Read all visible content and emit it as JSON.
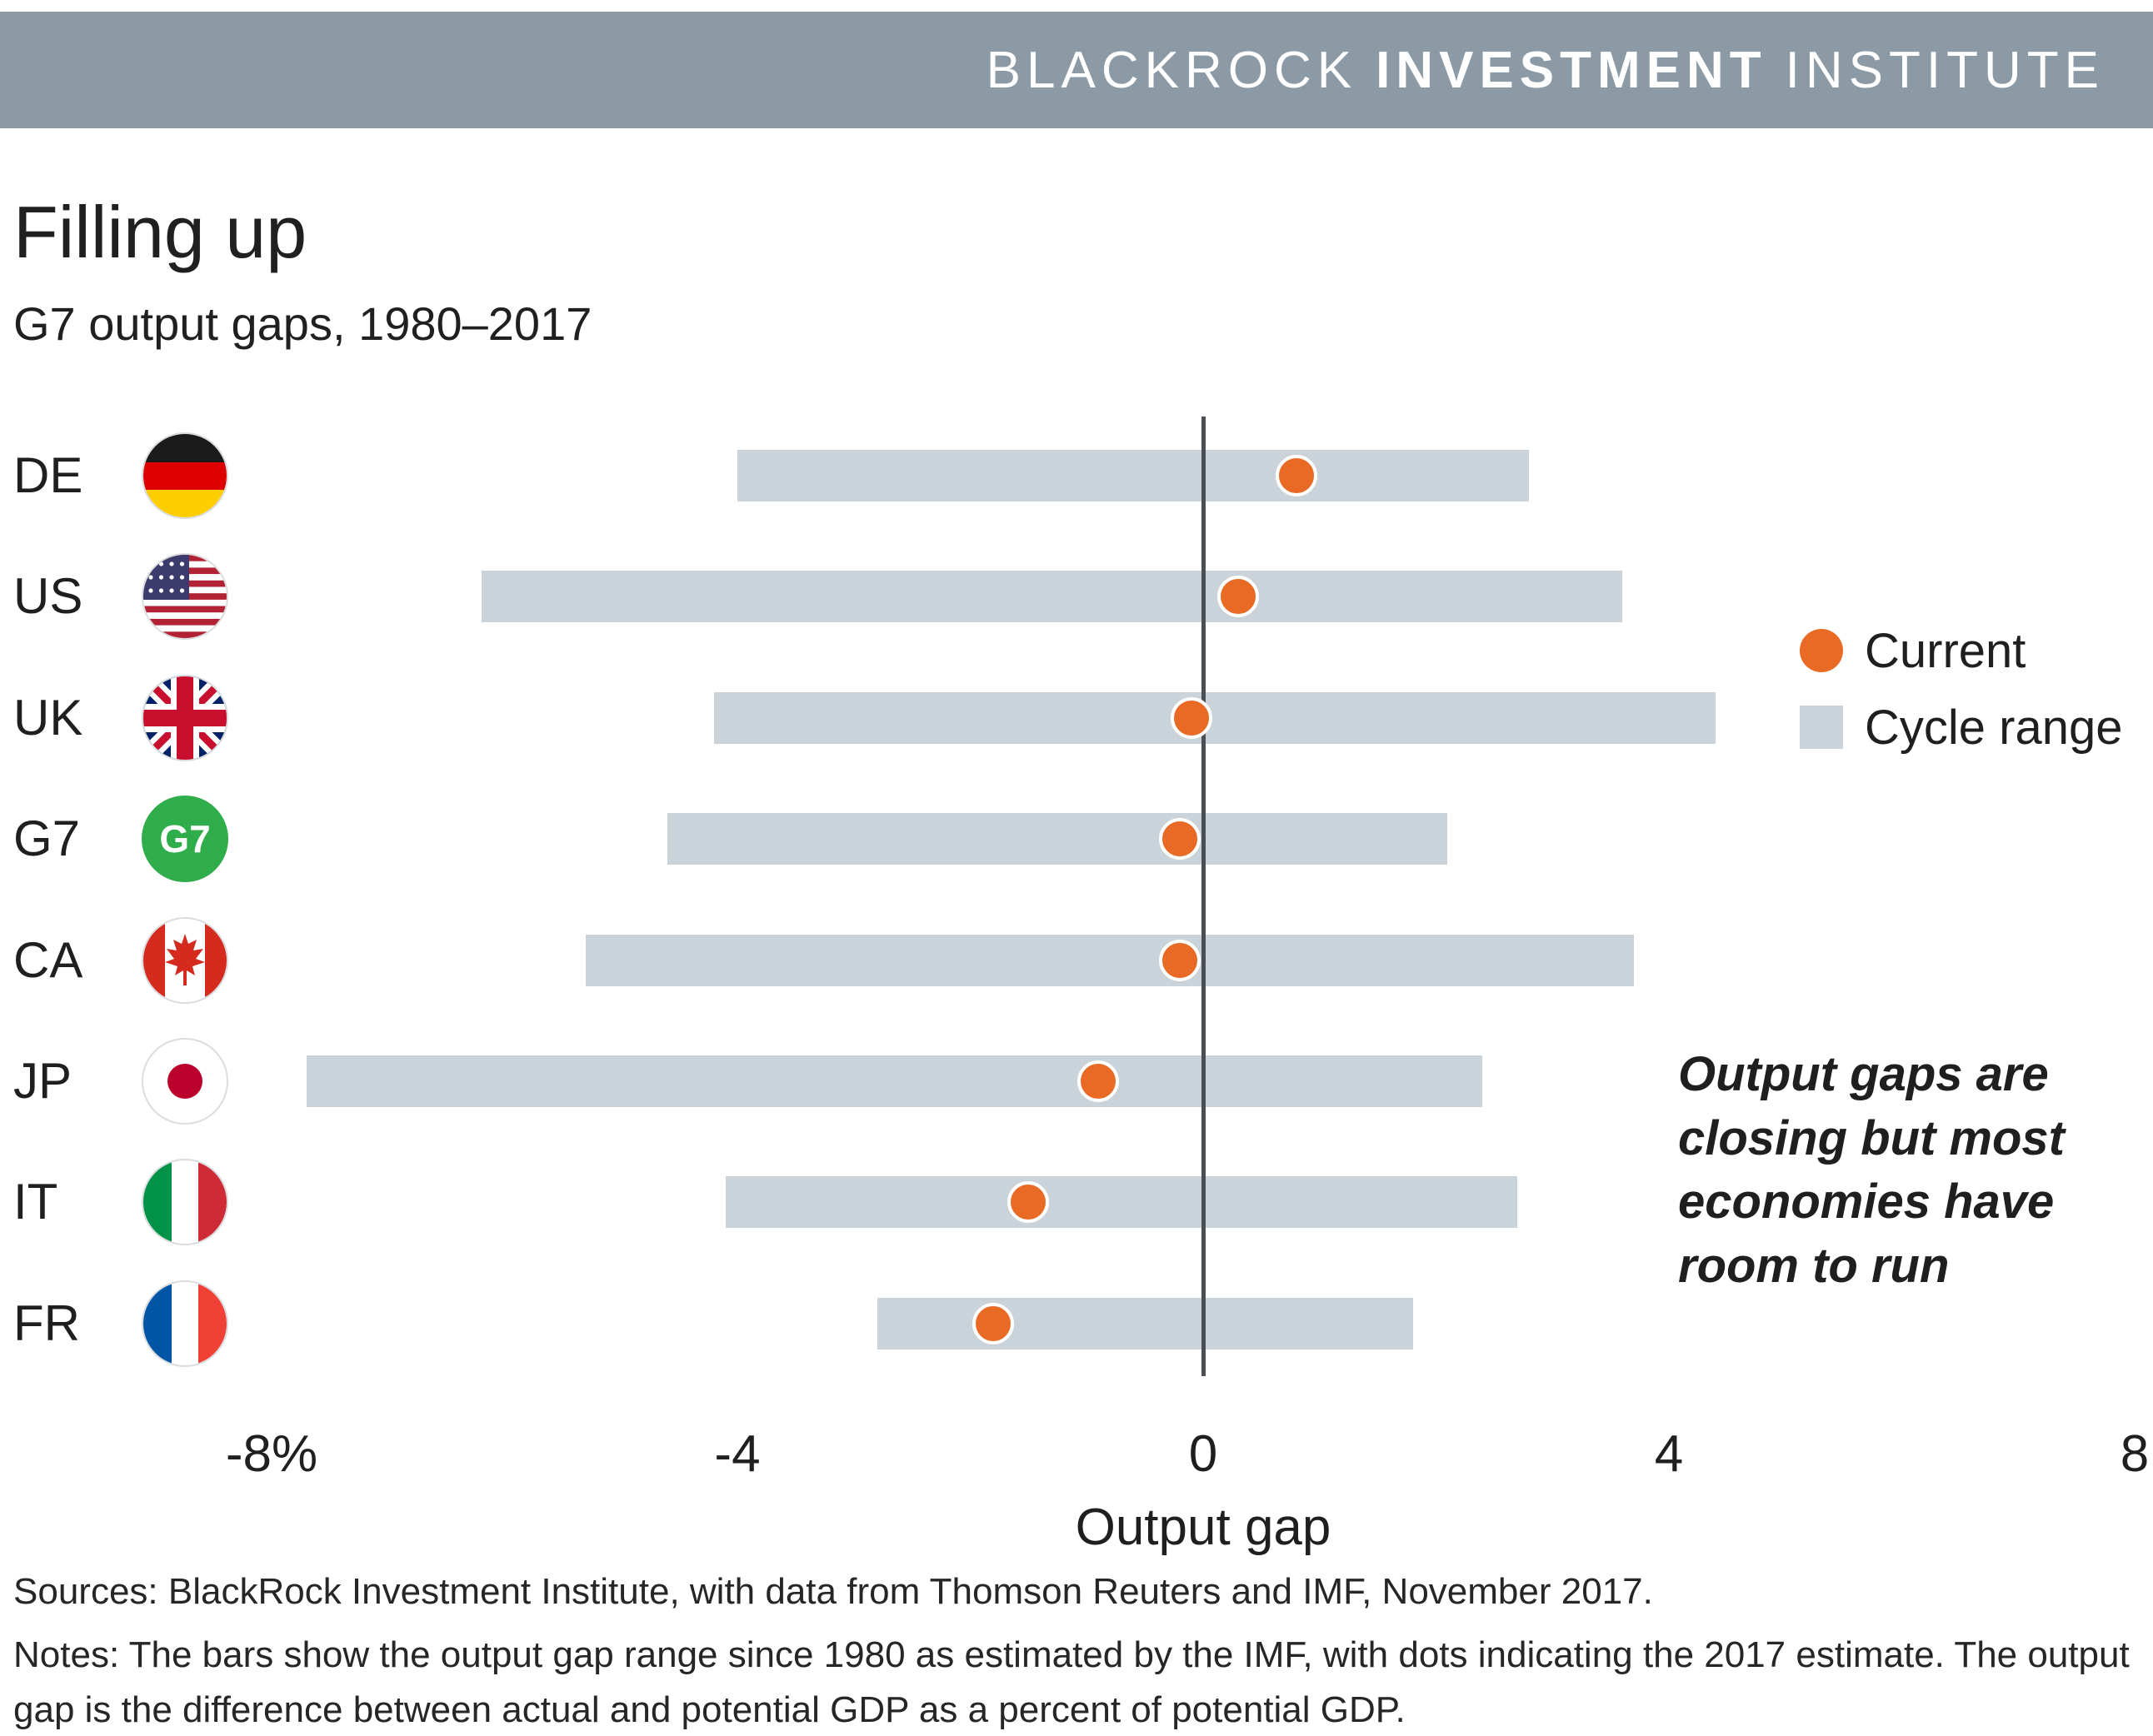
{
  "header": {
    "brand_left": "BLACKROCK",
    "brand_bold": "INVESTMENT",
    "brand_right": "INSTITUTE"
  },
  "title": "Filling up",
  "subtitle": "G7 output gaps, 1980–2017",
  "legend": {
    "current_label": "Current",
    "range_label": "Cycle range"
  },
  "annotation": "Output gaps are closing but most economies have room to run",
  "colors": {
    "accent_orange": "#E86A25",
    "bar_gray": "#CBD3DA",
    "header_slate": "#8C9AA5",
    "g7_green": "#2FAD4B",
    "axis": "#4B4F54"
  },
  "chart_data": {
    "type": "bar",
    "subtype": "range-with-dot",
    "title": "Filling up",
    "subtitle": "G7 output gaps, 1980–2017",
    "xlabel": "Output gap",
    "xlim": [
      -8,
      8
    ],
    "grid": false,
    "legend_position": "right",
    "legend": [
      "Current",
      "Cycle range"
    ],
    "x_ticks": [
      {
        "value": -8,
        "label": "-8%"
      },
      {
        "value": -4,
        "label": "-4"
      },
      {
        "value": 0,
        "label": "0"
      },
      {
        "value": 4,
        "label": "4"
      },
      {
        "value": 8,
        "label": "8"
      }
    ],
    "rows": [
      {
        "code": "DE",
        "flag": "germany-flag",
        "range": [
          -4.0,
          2.8
        ],
        "current": 0.8
      },
      {
        "code": "US",
        "flag": "usa-flag",
        "range": [
          -6.2,
          3.6
        ],
        "current": 0.3
      },
      {
        "code": "UK",
        "flag": "uk-flag",
        "range": [
          -4.2,
          4.4
        ],
        "current": -0.1
      },
      {
        "code": "G7",
        "flag": "g7-badge",
        "range": [
          -4.6,
          2.1
        ],
        "current": -0.2
      },
      {
        "code": "CA",
        "flag": "canada-flag",
        "range": [
          -5.3,
          3.7
        ],
        "current": -0.2
      },
      {
        "code": "JP",
        "flag": "japan-flag",
        "range": [
          -7.7,
          2.4
        ],
        "current": -0.9
      },
      {
        "code": "IT",
        "flag": "italy-flag",
        "range": [
          -4.1,
          2.7
        ],
        "current": -1.5
      },
      {
        "code": "FR",
        "flag": "france-flag",
        "range": [
          -2.8,
          1.8
        ],
        "current": -1.8
      }
    ]
  },
  "footer": {
    "sources": "Sources: BlackRock Investment Institute, with data from Thomson Reuters and IMF, November 2017.",
    "notes": "Notes: The bars show the output gap range since 1980 as estimated by the IMF, with dots indicating the 2017 estimate. The output gap is the difference between actual and potential GDP as a percent of potential GDP."
  }
}
